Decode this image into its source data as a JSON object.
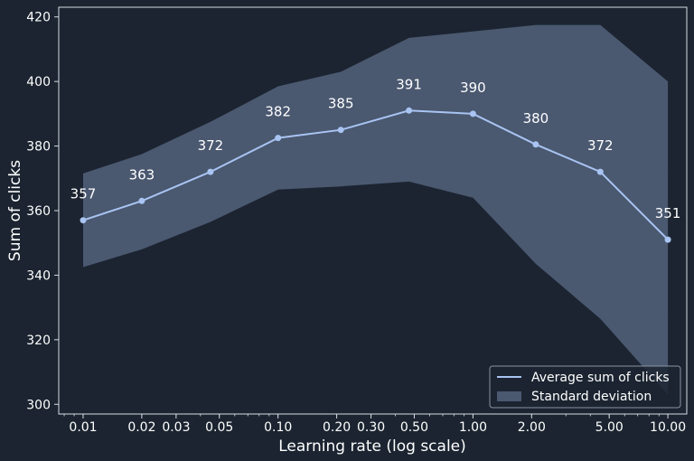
{
  "colors": {
    "background": "#1b2430",
    "axis": "#d6dbe4",
    "text": "#ffffff",
    "line": "#a9c4f2",
    "band": "#4a5870",
    "legend_bg": "#1b2430",
    "legend_border": "#8a93a3"
  },
  "chart_data": {
    "type": "line",
    "x_scale": "log",
    "xlabel": "Learning rate (log scale)",
    "ylabel": "Sum of clicks",
    "xlim": [
      0.0075,
      12.5
    ],
    "ylim": [
      297,
      423
    ],
    "x_ticks": [
      0.01,
      0.02,
      0.03,
      0.05,
      0.1,
      0.2,
      0.3,
      0.5,
      1,
      2,
      5,
      10
    ],
    "x_tick_labels": [
      "0.01",
      "0.02",
      "0.03",
      "0.05",
      "0.10",
      "0.20",
      "0.30",
      "0.50",
      "1.00",
      "2.00",
      "5.00",
      "10.00"
    ],
    "y_ticks": [
      300,
      320,
      340,
      360,
      380,
      400,
      420
    ],
    "y_tick_labels": [
      "300",
      "320",
      "340",
      "360",
      "380",
      "400",
      "420"
    ],
    "grid": false,
    "legend_position": "bottom-right",
    "x": [
      0.01,
      0.02,
      0.045,
      0.1,
      0.21,
      0.47,
      1.0,
      2.1,
      4.5,
      10.0
    ],
    "series": [
      {
        "name": "Average sum of clicks",
        "values": [
          357,
          363,
          372,
          382.5,
          385,
          391,
          390,
          380.5,
          372,
          351
        ],
        "labels": [
          "357",
          "363",
          "372",
          "382",
          "385",
          "391",
          "390",
          "380",
          "372",
          "351"
        ]
      }
    ],
    "band": {
      "name": "Standard deviation",
      "upper": [
        371.5,
        377.5,
        387.5,
        398.5,
        403,
        413.5,
        415.5,
        417.5,
        417.5,
        400
      ],
      "lower": [
        342.5,
        348,
        356.5,
        366.5,
        367.5,
        369,
        364,
        343.5,
        326.5,
        303
      ]
    }
  }
}
